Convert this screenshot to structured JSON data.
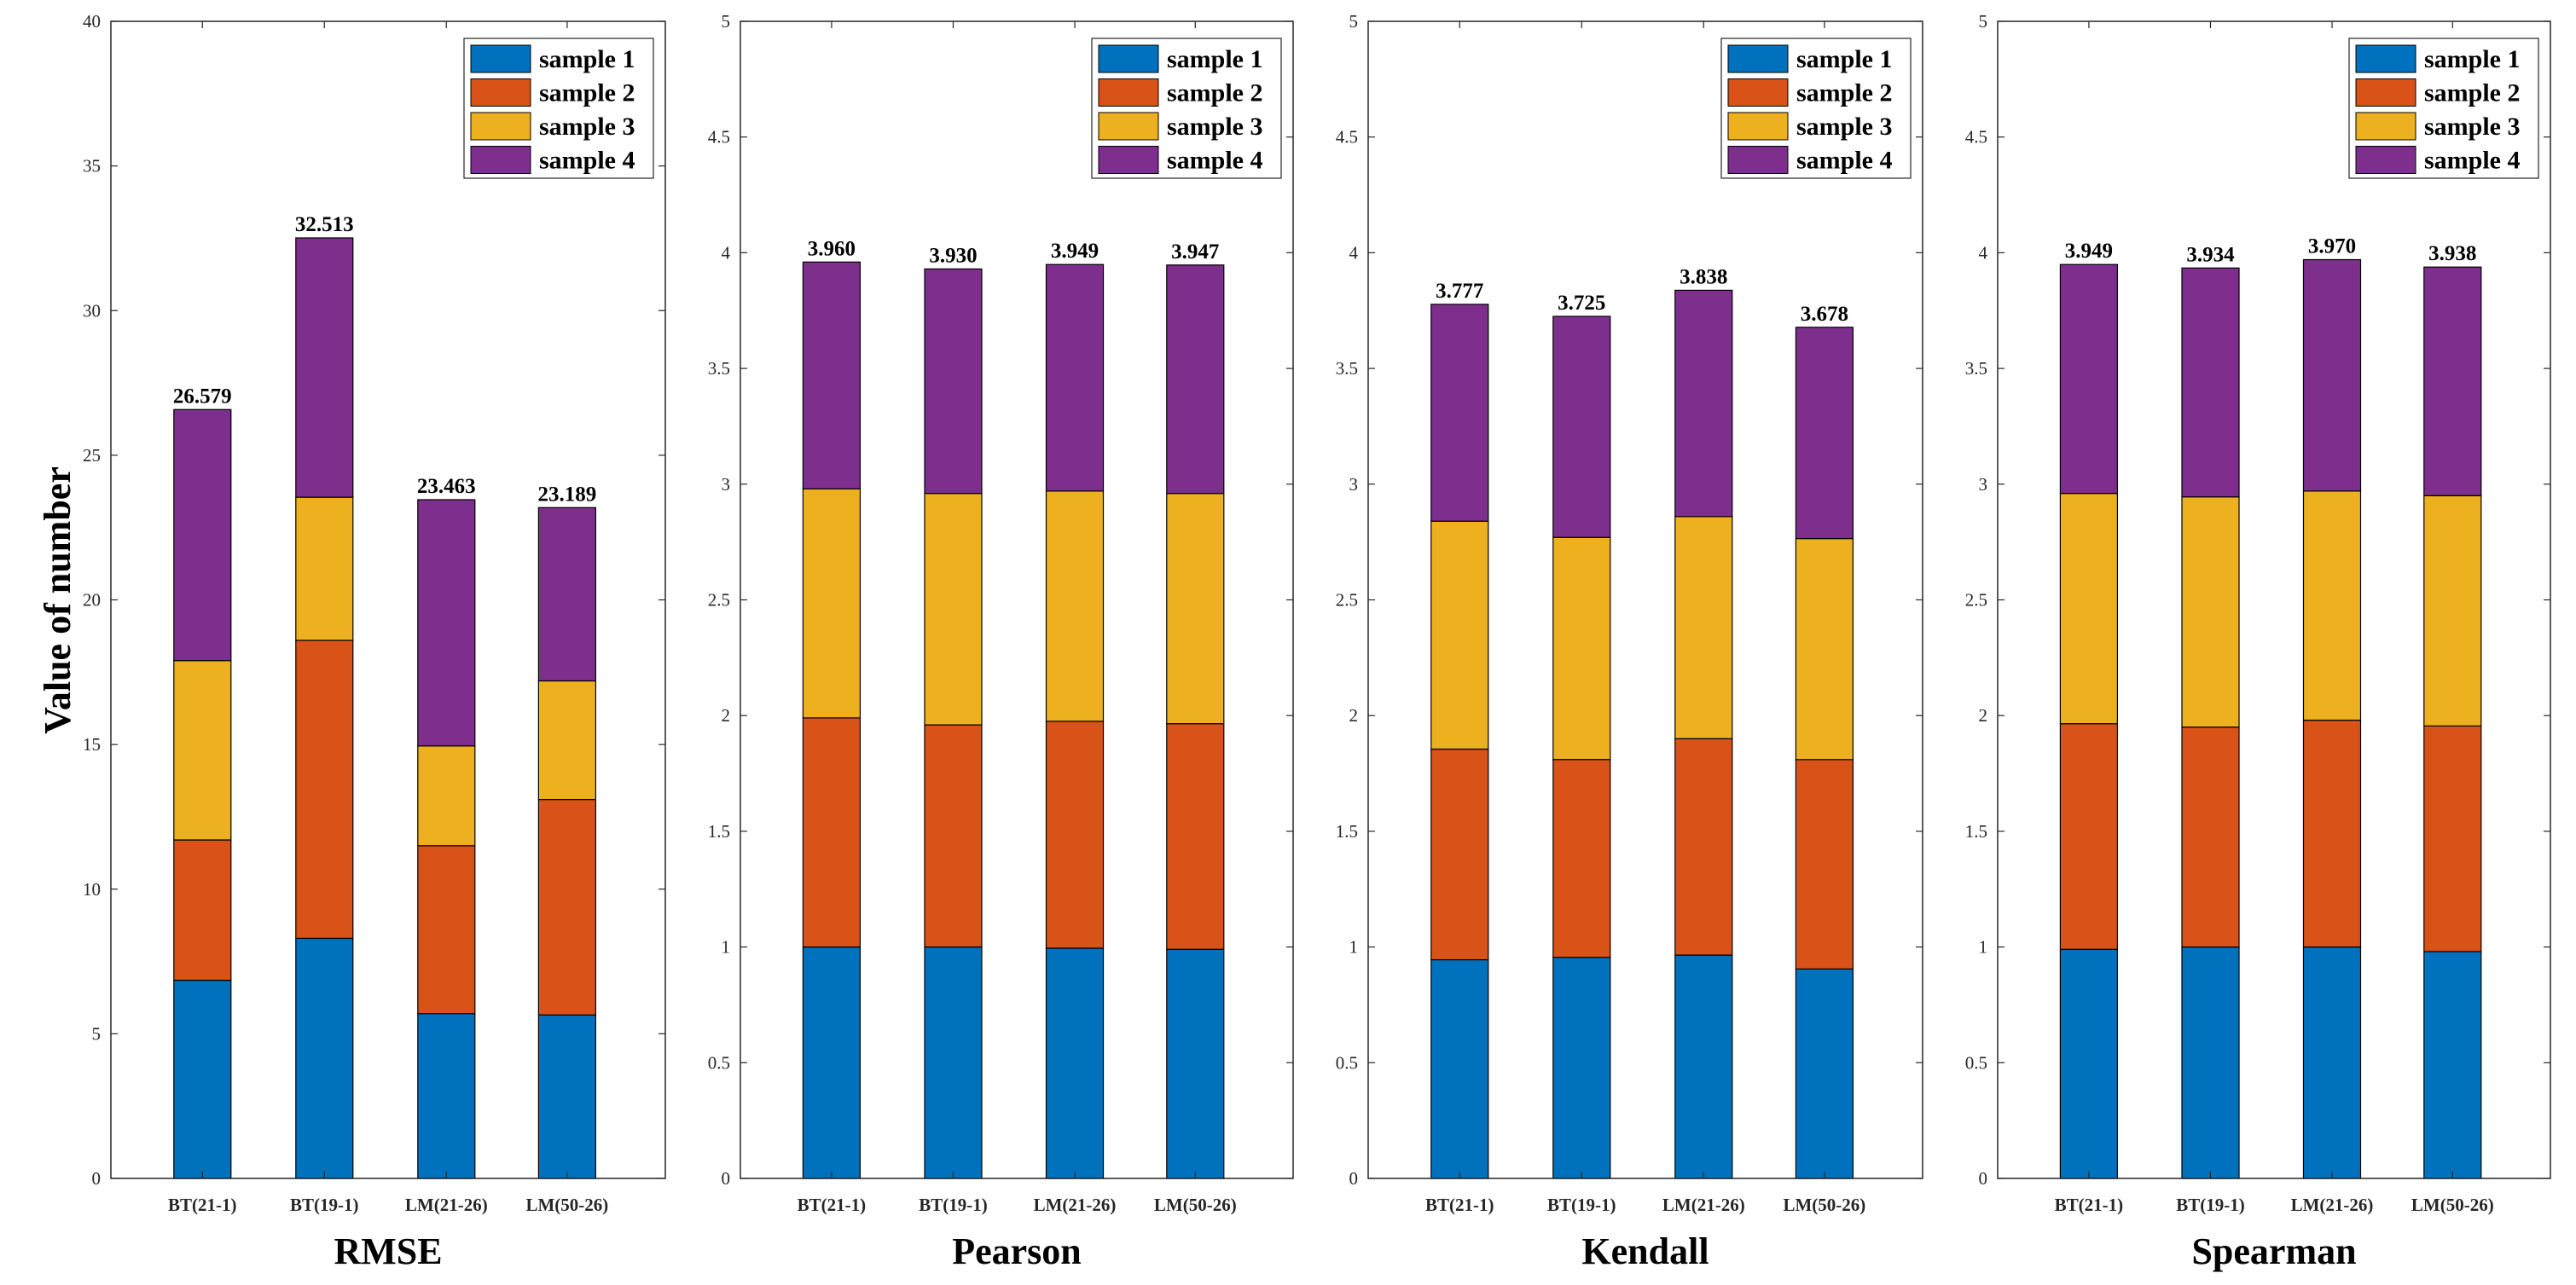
{
  "chart_data": [
    {
      "type": "bar",
      "stacked": true,
      "title": "",
      "xlabel": "RMSE",
      "ylabel": "Value of number",
      "ylim": [
        0,
        40
      ],
      "yticks": [
        0,
        5,
        10,
        15,
        20,
        25,
        30,
        35,
        40
      ],
      "categories": [
        "BT(21-1)",
        "BT(19-1)",
        "LM(21-26)",
        "LM(50-26)"
      ],
      "series": [
        {
          "name": "sample 1",
          "values": [
            6.85,
            8.3,
            5.7,
            5.65
          ]
        },
        {
          "name": "sample 2",
          "values": [
            4.85,
            10.3,
            5.8,
            7.45
          ]
        },
        {
          "name": "sample 3",
          "values": [
            6.2,
            4.95,
            3.45,
            4.1
          ]
        },
        {
          "name": "sample 4",
          "values": [
            8.679,
            8.963,
            8.513,
            5.989
          ]
        }
      ],
      "totals": [
        "26.579",
        "32.513",
        "23.463",
        "23.189"
      ],
      "legend": "top-right",
      "grid": false
    },
    {
      "type": "bar",
      "stacked": true,
      "title": "",
      "xlabel": "Pearson",
      "ylabel": "",
      "ylim": [
        0,
        5
      ],
      "yticks": [
        0,
        0.5,
        1,
        1.5,
        2,
        2.5,
        3,
        3.5,
        4,
        4.5,
        5
      ],
      "categories": [
        "BT(21-1)",
        "BT(19-1)",
        "LM(21-26)",
        "LM(50-26)"
      ],
      "series": [
        {
          "name": "sample 1",
          "values": [
            1.0,
            1.0,
            0.995,
            0.99
          ]
        },
        {
          "name": "sample 2",
          "values": [
            0.99,
            0.96,
            0.98,
            0.975
          ]
        },
        {
          "name": "sample 3",
          "values": [
            0.99,
            1.0,
            0.995,
            0.995
          ]
        },
        {
          "name": "sample 4",
          "values": [
            0.98,
            0.97,
            0.979,
            0.987
          ]
        }
      ],
      "totals": [
        "3.960",
        "3.930",
        "3.949",
        "3.947"
      ],
      "legend": "top-right",
      "grid": false
    },
    {
      "type": "bar",
      "stacked": true,
      "title": "",
      "xlabel": "Kendall",
      "ylabel": "",
      "ylim": [
        0,
        5
      ],
      "yticks": [
        0,
        0.5,
        1,
        1.5,
        2,
        2.5,
        3,
        3.5,
        4,
        4.5,
        5
      ],
      "categories": [
        "BT(21-1)",
        "BT(19-1)",
        "LM(21-26)",
        "LM(50-26)"
      ],
      "series": [
        {
          "name": "sample 1",
          "values": [
            0.945,
            0.955,
            0.965,
            0.905
          ]
        },
        {
          "name": "sample 2",
          "values": [
            0.91,
            0.855,
            0.935,
            0.905
          ]
        },
        {
          "name": "sample 3",
          "values": [
            0.985,
            0.96,
            0.96,
            0.955
          ]
        },
        {
          "name": "sample 4",
          "values": [
            0.937,
            0.955,
            0.978,
            0.913
          ]
        }
      ],
      "totals": [
        "3.777",
        "3.725",
        "3.838",
        "3.678"
      ],
      "legend": "top-right",
      "grid": false
    },
    {
      "type": "bar",
      "stacked": true,
      "title": "",
      "xlabel": "Spearman",
      "ylabel": "",
      "ylim": [
        0,
        5
      ],
      "yticks": [
        0,
        0.5,
        1,
        1.5,
        2,
        2.5,
        3,
        3.5,
        4,
        4.5,
        5
      ],
      "categories": [
        "BT(21-1)",
        "BT(19-1)",
        "LM(21-26)",
        "LM(50-26)"
      ],
      "series": [
        {
          "name": "sample 1",
          "values": [
            0.99,
            1.0,
            1.0,
            0.98
          ]
        },
        {
          "name": "sample 2",
          "values": [
            0.975,
            0.95,
            0.98,
            0.975
          ]
        },
        {
          "name": "sample 3",
          "values": [
            0.995,
            0.995,
            0.99,
            0.995
          ]
        },
        {
          "name": "sample 4",
          "values": [
            0.989,
            0.989,
            1.0,
            0.988
          ]
        }
      ],
      "totals": [
        "3.949",
        "3.934",
        "3.970",
        "3.938"
      ],
      "legend": "top-right",
      "grid": false
    }
  ],
  "colors": {
    "sample 1": "#0072BD",
    "sample 2": "#D95319",
    "sample 3": "#EDB120",
    "sample 4": "#7E2F8E",
    "axis": "#262626"
  }
}
